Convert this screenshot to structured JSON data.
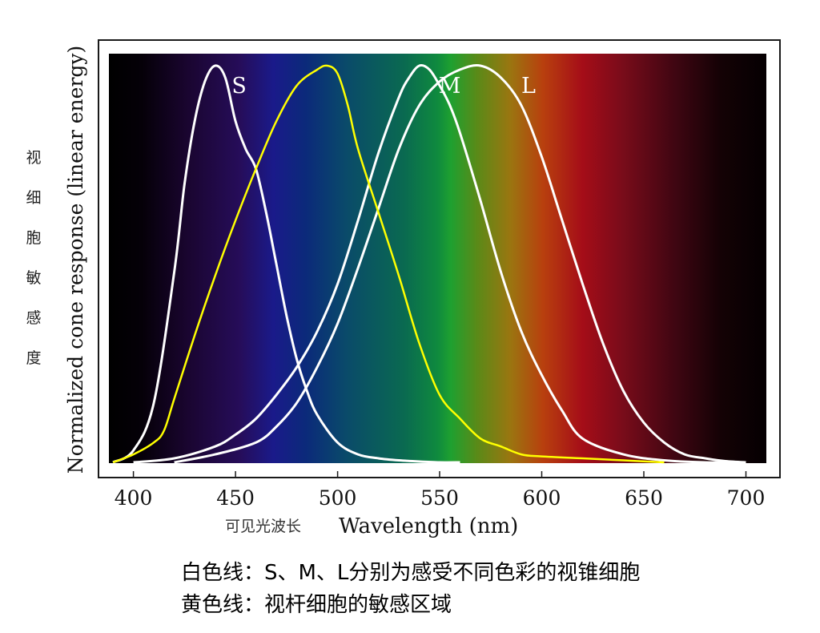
{
  "chart_data": {
    "type": "line",
    "title": "",
    "xlabel": "Wavelength (nm)",
    "xlabel_cn": "可见光波长",
    "ylabel": "Normalized cone response (linear energy)",
    "ylabel_cn": "视细胞敏感度",
    "xlim": [
      388,
      710
    ],
    "ylim": [
      0,
      1
    ],
    "xticks": [
      400,
      450,
      500,
      550,
      600,
      650,
      700
    ],
    "background": "visible-spectrum-gradient",
    "series": [
      {
        "name": "S",
        "color": "#ffffff",
        "x": [
          390,
          400,
          410,
          420,
          425,
          430,
          435,
          440,
          445,
          450,
          455,
          460,
          465,
          470,
          475,
          480,
          485,
          490,
          500,
          510,
          520,
          530,
          540,
          550,
          560
        ],
        "y": [
          0.0,
          0.03,
          0.15,
          0.48,
          0.7,
          0.86,
          0.96,
          1.0,
          0.97,
          0.86,
          0.79,
          0.74,
          0.63,
          0.5,
          0.37,
          0.26,
          0.18,
          0.12,
          0.05,
          0.02,
          0.01,
          0.005,
          0.002,
          0.0,
          0.0
        ]
      },
      {
        "name": "M",
        "color": "#ffffff",
        "x": [
          400,
          420,
          440,
          450,
          460,
          470,
          480,
          490,
          500,
          510,
          520,
          530,
          535,
          540,
          545,
          550,
          555,
          560,
          570,
          580,
          590,
          600,
          610,
          620,
          640,
          660,
          680,
          700
        ],
        "y": [
          0.0,
          0.01,
          0.04,
          0.07,
          0.11,
          0.17,
          0.24,
          0.33,
          0.45,
          0.61,
          0.78,
          0.92,
          0.97,
          1.0,
          0.99,
          0.95,
          0.9,
          0.83,
          0.66,
          0.48,
          0.33,
          0.22,
          0.13,
          0.06,
          0.02,
          0.005,
          0.0,
          0.0
        ]
      },
      {
        "name": "L",
        "color": "#ffffff",
        "x": [
          420,
          440,
          460,
          470,
          480,
          490,
          500,
          510,
          520,
          530,
          540,
          550,
          560,
          570,
          580,
          590,
          600,
          610,
          620,
          630,
          640,
          650,
          660,
          670,
          680,
          690,
          700
        ],
        "y": [
          0.0,
          0.02,
          0.05,
          0.09,
          0.15,
          0.24,
          0.35,
          0.49,
          0.64,
          0.79,
          0.9,
          0.96,
          0.99,
          1.0,
          0.97,
          0.9,
          0.77,
          0.61,
          0.45,
          0.3,
          0.18,
          0.1,
          0.05,
          0.02,
          0.01,
          0.003,
          0.0
        ]
      },
      {
        "name": "",
        "color": "#ffff00",
        "x": [
          390,
          400,
          410,
          415,
          420,
          430,
          440,
          450,
          460,
          470,
          480,
          490,
          495,
          500,
          505,
          510,
          520,
          530,
          540,
          550,
          560,
          570,
          580,
          590,
          600,
          620,
          640,
          660
        ],
        "y": [
          0.0,
          0.02,
          0.05,
          0.08,
          0.16,
          0.32,
          0.47,
          0.61,
          0.74,
          0.86,
          0.95,
          0.99,
          1.0,
          0.98,
          0.9,
          0.79,
          0.63,
          0.47,
          0.3,
          0.17,
          0.11,
          0.06,
          0.04,
          0.02,
          0.015,
          0.01,
          0.005,
          0.0
        ]
      }
    ]
  },
  "captions": {
    "line1": "白色线：S、M、L分别为感受不同色彩的视锥细胞",
    "line2": "黄色线：视杆细胞的敏感区域"
  }
}
